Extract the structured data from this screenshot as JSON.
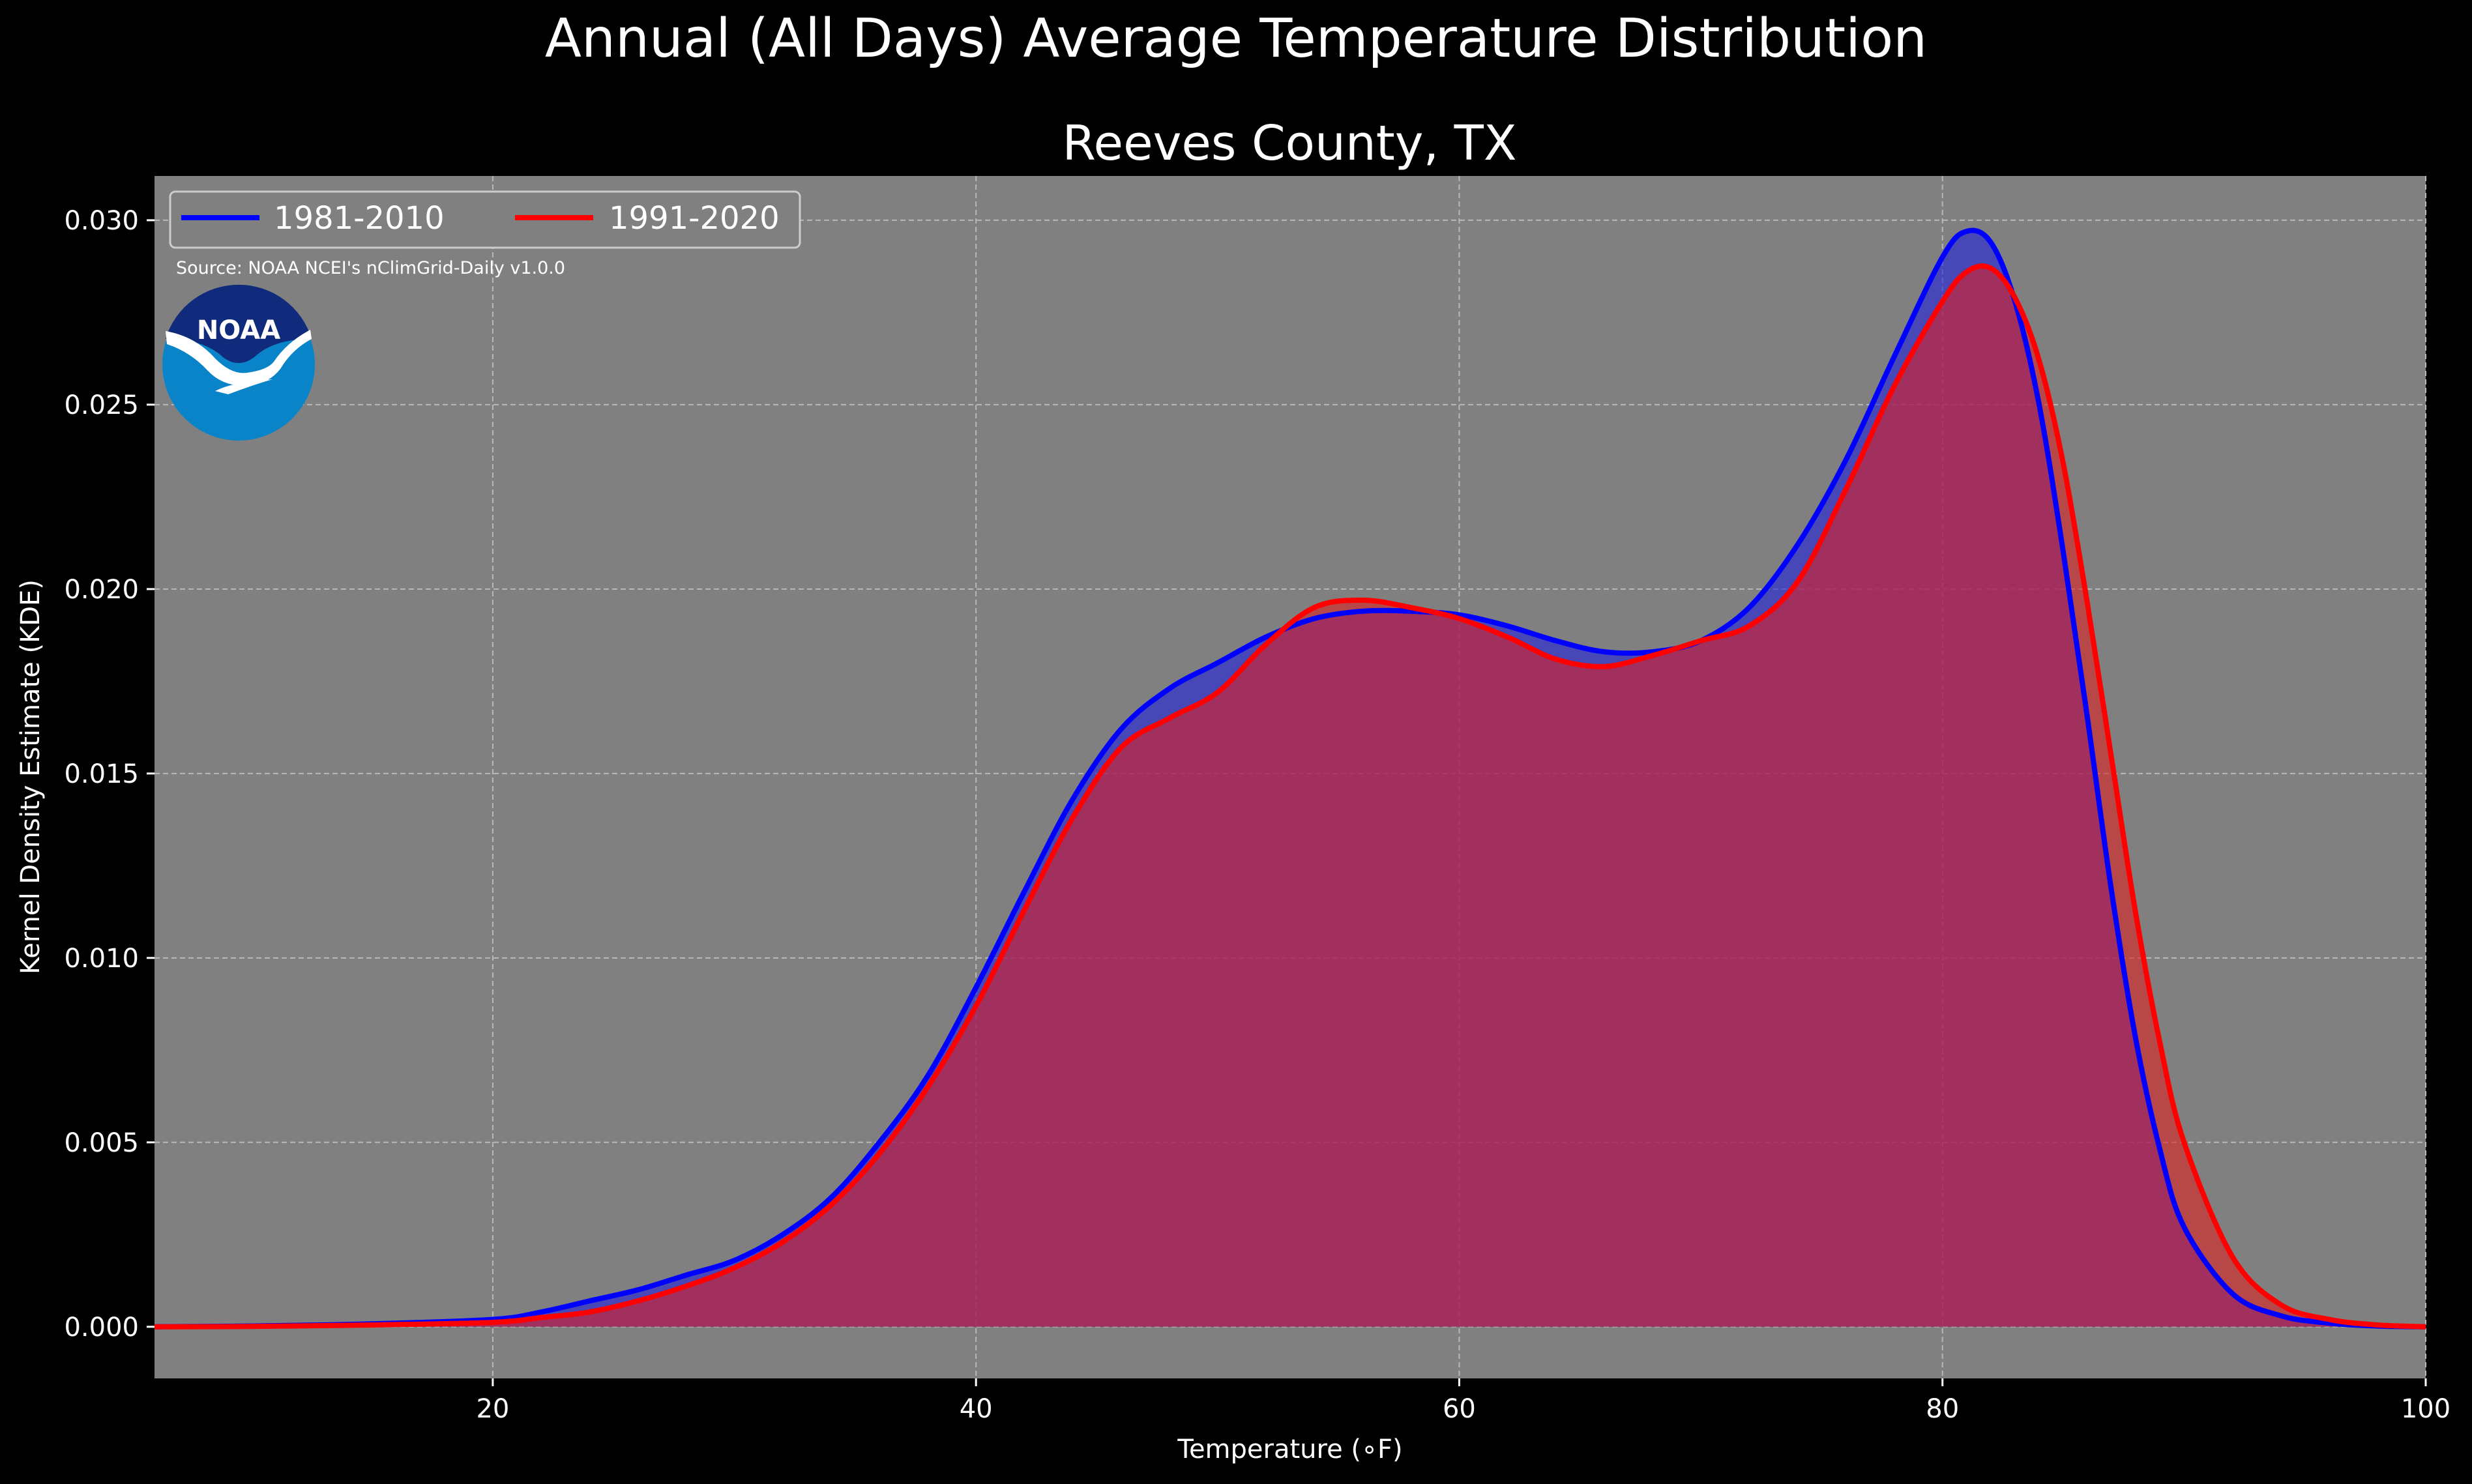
{
  "figure": {
    "suptitle": "Annual (All Days) Average Temperature Distribution"
  },
  "chart_data": {
    "type": "area",
    "title": "Reeves County, TX",
    "xlabel": "Temperature (∘F)",
    "ylabel": "Kernel Density Estimate (KDE)",
    "xlim": [
      6,
      100
    ],
    "ylim": [
      -0.0014,
      0.0312
    ],
    "xticks": [
      20,
      40,
      60,
      80,
      100
    ],
    "yticks": [
      0.0,
      0.005,
      0.01,
      0.015,
      0.02,
      0.025,
      0.03
    ],
    "ytick_labels": [
      "0.000",
      "0.005",
      "0.010",
      "0.015",
      "0.020",
      "0.025",
      "0.030"
    ],
    "grid": true,
    "legend_placement": "top-left",
    "annotation": "Source: NOAA NCEI's nClimGrid-Daily v1.0.0",
    "logo_text": "NOAA",
    "background_color": "#808080",
    "series": [
      {
        "name": "1981-2010",
        "color": "#0000ff",
        "fill": "#2222dd",
        "x": [
          6,
          10,
          15,
          20,
          22,
          24,
          26,
          28,
          30,
          32,
          34,
          36,
          38,
          40,
          42,
          44,
          46,
          48,
          50,
          52,
          54,
          56,
          58,
          60,
          62,
          64,
          66,
          68,
          70,
          72,
          74,
          76,
          78,
          80,
          81,
          82,
          83,
          84,
          85,
          86,
          87,
          88,
          89,
          90,
          92,
          94,
          96,
          98,
          100
        ],
        "y": [
          0.0,
          2e-05,
          8e-05,
          0.0002,
          0.0004,
          0.0007,
          0.001,
          0.0014,
          0.0018,
          0.0025,
          0.0035,
          0.005,
          0.0068,
          0.0092,
          0.0118,
          0.0143,
          0.0162,
          0.0173,
          0.018,
          0.0187,
          0.0192,
          0.0194,
          0.0194,
          0.0193,
          0.019,
          0.0186,
          0.0183,
          0.0183,
          0.0186,
          0.0195,
          0.0212,
          0.0235,
          0.0263,
          0.029,
          0.0297,
          0.0294,
          0.0278,
          0.025,
          0.021,
          0.0165,
          0.0118,
          0.0078,
          0.0048,
          0.0027,
          0.0009,
          0.0003,
          0.0001,
          2e-05,
          0.0
        ]
      },
      {
        "name": "1991-2020",
        "color": "#ff0000",
        "fill": "#dd2222",
        "x": [
          6,
          10,
          15,
          20,
          22,
          24,
          26,
          28,
          30,
          32,
          34,
          36,
          38,
          40,
          42,
          44,
          46,
          48,
          50,
          52,
          54,
          56,
          58,
          60,
          62,
          64,
          66,
          68,
          70,
          72,
          74,
          76,
          78,
          80,
          81,
          82,
          83,
          84,
          85,
          86,
          87,
          88,
          89,
          90,
          92,
          94,
          96,
          98,
          100
        ],
        "y": [
          0.0,
          1e-05,
          5e-05,
          0.00012,
          0.00025,
          0.0004,
          0.0007,
          0.0011,
          0.0016,
          0.0023,
          0.0033,
          0.0047,
          0.0065,
          0.0087,
          0.0113,
          0.0138,
          0.0157,
          0.0165,
          0.0172,
          0.0185,
          0.0195,
          0.0197,
          0.0195,
          0.0192,
          0.0187,
          0.0181,
          0.0179,
          0.0182,
          0.0186,
          0.019,
          0.0202,
          0.0227,
          0.0255,
          0.0278,
          0.0286,
          0.0287,
          0.0279,
          0.0262,
          0.0234,
          0.0196,
          0.0154,
          0.0112,
          0.0077,
          0.005,
          0.0019,
          0.0006,
          0.0002,
          5e-05,
          0.0
        ]
      }
    ]
  }
}
